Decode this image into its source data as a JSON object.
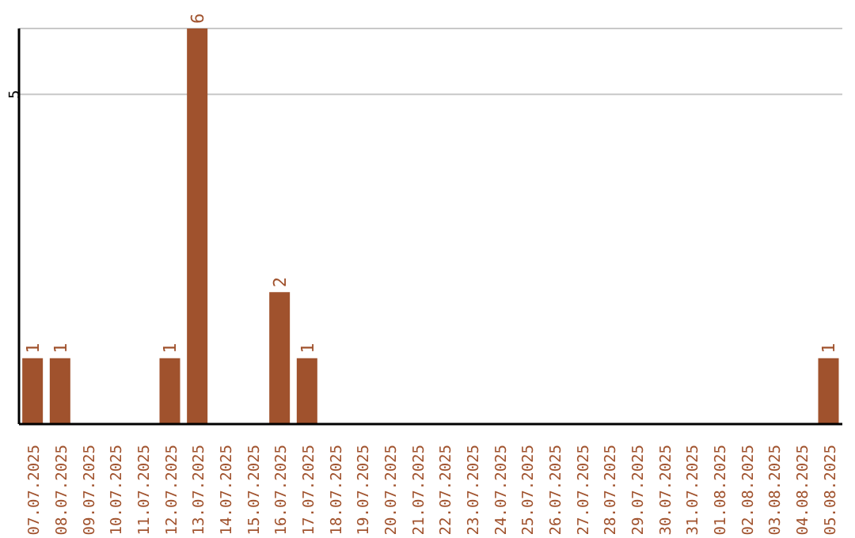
{
  "chart_data": {
    "type": "bar",
    "categories": [
      "07.07.2025",
      "08.07.2025",
      "09.07.2025",
      "10.07.2025",
      "11.07.2025",
      "12.07.2025",
      "13.07.2025",
      "14.07.2025",
      "15.07.2025",
      "16.07.2025",
      "17.07.2025",
      "18.07.2025",
      "19.07.2025",
      "20.07.2025",
      "21.07.2025",
      "22.07.2025",
      "23.07.2025",
      "24.07.2025",
      "25.07.2025",
      "26.07.2025",
      "27.07.2025",
      "28.07.2025",
      "29.07.2025",
      "30.07.2025",
      "31.07.2025",
      "01.08.2025",
      "02.08.2025",
      "03.08.2025",
      "04.08.2025",
      "05.08.2025"
    ],
    "values": [
      1,
      1,
      0,
      0,
      0,
      1,
      6,
      0,
      0,
      2,
      1,
      0,
      0,
      0,
      0,
      0,
      0,
      0,
      0,
      0,
      0,
      0,
      0,
      0,
      0,
      0,
      0,
      0,
      0,
      1
    ],
    "value_labels": [
      "1",
      "1",
      null,
      null,
      null,
      "1",
      "6",
      null,
      null,
      "2",
      "1",
      null,
      null,
      null,
      null,
      null,
      null,
      null,
      null,
      null,
      null,
      null,
      null,
      null,
      null,
      null,
      null,
      null,
      null,
      "1"
    ],
    "color": "#a0522d",
    "ylim": [
      0,
      6
    ],
    "yticks": [
      5
    ],
    "grid": "y"
  }
}
